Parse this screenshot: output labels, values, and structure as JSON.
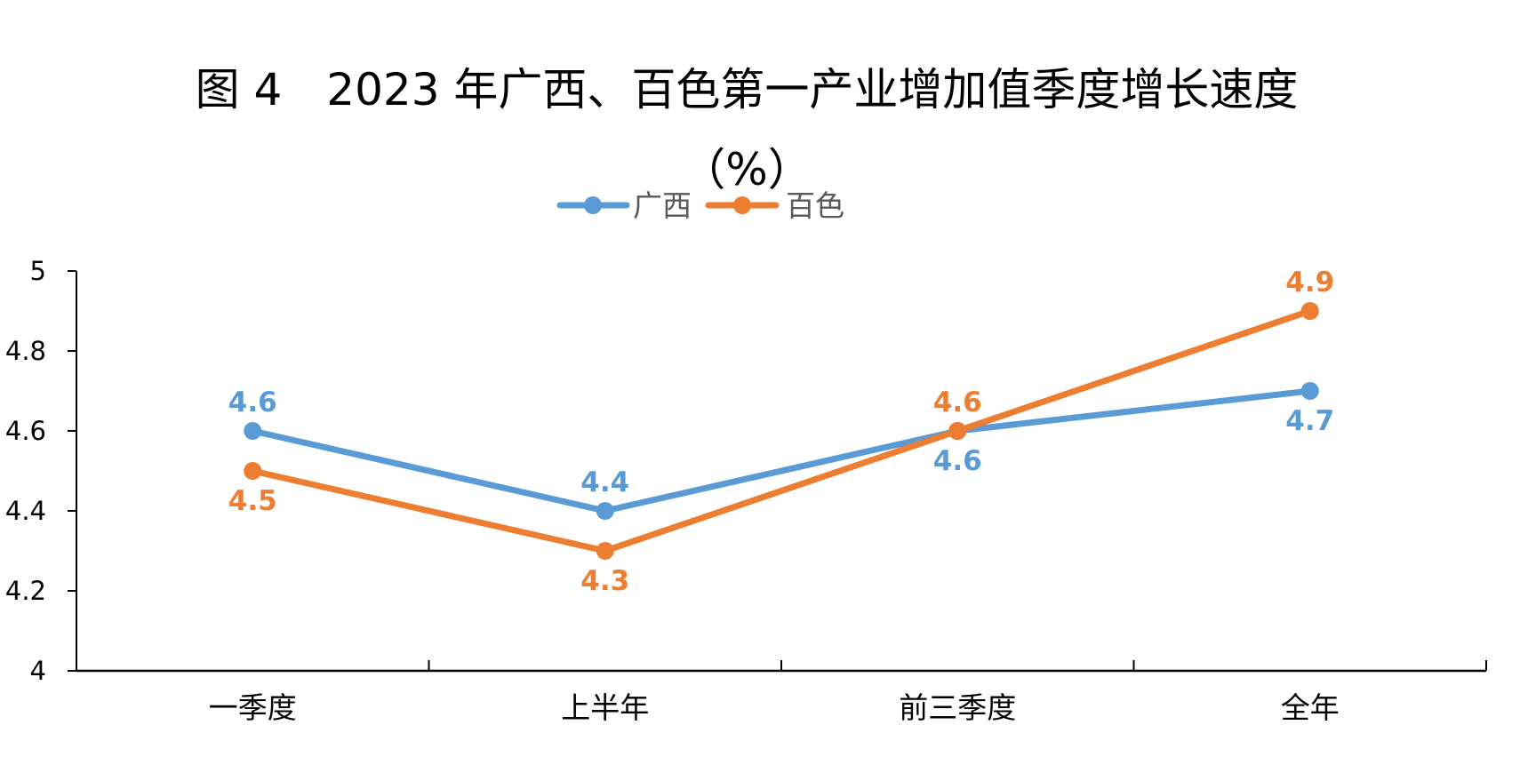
{
  "chart_data": {
    "type": "line",
    "title_line1": "图 4　2023 年广西、百色第一产业增加值季度增长速度",
    "title_line2": "（%）",
    "categories": [
      "一季度",
      "上半年",
      "前三季度",
      "全年"
    ],
    "series": [
      {
        "name": "广西",
        "color": "#5B9BD5",
        "values": [
          4.6,
          4.4,
          4.6,
          4.7
        ]
      },
      {
        "name": "百色",
        "color": "#ED7D31",
        "values": [
          4.5,
          4.3,
          4.6,
          4.9
        ]
      }
    ],
    "ylim": [
      4,
      5
    ],
    "yticks": [
      "4",
      "4.2",
      "4.4",
      "4.6",
      "4.8",
      "5"
    ],
    "legend_position": "top",
    "grid": false
  }
}
